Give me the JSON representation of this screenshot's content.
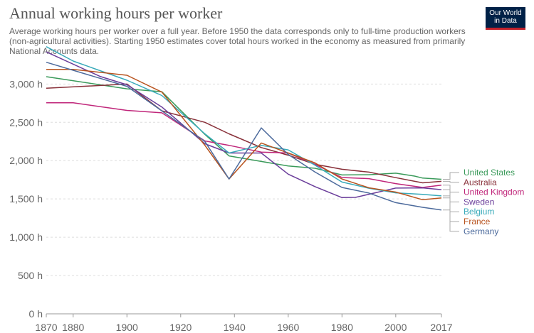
{
  "header": {
    "title": "Annual working hours per worker",
    "subtitle": "Average working hours per worker over a full year. Before 1950 the data corresponds only to full-time production workers (non-agricultural activities). Starting 1950 estimates cover total hours worked in the economy as measured from primarily National Accounts data."
  },
  "logo": {
    "line1": "Our World",
    "line2": "in Data"
  },
  "chart_data": {
    "type": "line",
    "title": "Annual working hours per worker",
    "xlim": [
      1870,
      2017
    ],
    "ylim": [
      0,
      3300
    ],
    "x_ticks": [
      1870,
      1880,
      1900,
      1920,
      1940,
      1960,
      1980,
      2000,
      2017
    ],
    "y_ticks": [
      {
        "value": 0,
        "label": "0 h"
      },
      {
        "value": 500,
        "label": "500 h"
      },
      {
        "value": 1000,
        "label": "1,000 h"
      },
      {
        "value": 1500,
        "label": "1,500 h"
      },
      {
        "value": 2000,
        "label": "2,000 h"
      },
      {
        "value": 2500,
        "label": "2,500 h"
      },
      {
        "value": 3000,
        "label": "3,000 h"
      }
    ],
    "grid": "horizontal dashed",
    "legend_position": "right",
    "series": [
      {
        "name": "United States",
        "color": "#3a9a5a",
        "points": [
          [
            1870,
            3096
          ],
          [
            1900,
            2938
          ],
          [
            1913,
            2900
          ],
          [
            1929,
            2342
          ],
          [
            1938,
            2062
          ],
          [
            1950,
            1989
          ],
          [
            1960,
            1930
          ],
          [
            1970,
            1900
          ],
          [
            1980,
            1813
          ],
          [
            1990,
            1816
          ],
          [
            2000,
            1836
          ],
          [
            2007,
            1798
          ],
          [
            2010,
            1772
          ],
          [
            2017,
            1757
          ]
        ]
      },
      {
        "name": "Australia",
        "color": "#883039",
        "points": [
          [
            1870,
            2945
          ],
          [
            1900,
            3000
          ],
          [
            1913,
            2650
          ],
          [
            1929,
            2500
          ],
          [
            1938,
            2350
          ],
          [
            1950,
            2171
          ],
          [
            1960,
            2071
          ],
          [
            1970,
            1952
          ],
          [
            1980,
            1887
          ],
          [
            1990,
            1850
          ],
          [
            2000,
            1778
          ],
          [
            2010,
            1710
          ],
          [
            2017,
            1730
          ]
        ]
      },
      {
        "name": "United Kingdom",
        "color": "#c0267a",
        "points": [
          [
            1870,
            2755
          ],
          [
            1880,
            2755
          ],
          [
            1900,
            2656
          ],
          [
            1913,
            2624
          ],
          [
            1929,
            2257
          ],
          [
            1938,
            2200
          ],
          [
            1950,
            2112
          ],
          [
            1960,
            2100
          ],
          [
            1970,
            1950
          ],
          [
            1980,
            1780
          ],
          [
            1990,
            1765
          ],
          [
            2000,
            1700
          ],
          [
            2010,
            1650
          ],
          [
            2017,
            1681
          ]
        ]
      },
      {
        "name": "Sweden",
        "color": "#6a3d9a",
        "points": [
          [
            1870,
            3420
          ],
          [
            1890,
            3100
          ],
          [
            1900,
            2990
          ],
          [
            1913,
            2700
          ],
          [
            1929,
            2220
          ],
          [
            1938,
            2100
          ],
          [
            1950,
            2100
          ],
          [
            1960,
            1823
          ],
          [
            1970,
            1660
          ],
          [
            1980,
            1517
          ],
          [
            1985,
            1520
          ],
          [
            1990,
            1561
          ],
          [
            2000,
            1642
          ],
          [
            2010,
            1644
          ],
          [
            2017,
            1621
          ]
        ]
      },
      {
        "name": "Belgium",
        "color": "#38aaba",
        "points": [
          [
            1870,
            3488
          ],
          [
            1880,
            3300
          ],
          [
            1900,
            3050
          ],
          [
            1913,
            2850
          ],
          [
            1929,
            2350
          ],
          [
            1938,
            2100
          ],
          [
            1950,
            2200
          ],
          [
            1960,
            2140
          ],
          [
            1970,
            1940
          ],
          [
            1980,
            1720
          ],
          [
            1990,
            1640
          ],
          [
            2000,
            1580
          ],
          [
            2010,
            1560
          ],
          [
            2017,
            1540
          ]
        ]
      },
      {
        "name": "France",
        "color": "#b8531e",
        "points": [
          [
            1870,
            3192
          ],
          [
            1880,
            3192
          ],
          [
            1900,
            3115
          ],
          [
            1913,
            2895
          ],
          [
            1929,
            2200
          ],
          [
            1938,
            1760
          ],
          [
            1950,
            2230
          ],
          [
            1960,
            2100
          ],
          [
            1970,
            1970
          ],
          [
            1980,
            1760
          ],
          [
            1990,
            1645
          ],
          [
            2000,
            1590
          ],
          [
            2010,
            1490
          ],
          [
            2017,
            1514
          ]
        ]
      },
      {
        "name": "Germany",
        "color": "#4c6a9c",
        "points": [
          [
            1870,
            3284
          ],
          [
            1900,
            2970
          ],
          [
            1913,
            2650
          ],
          [
            1929,
            2250
          ],
          [
            1938,
            1760
          ],
          [
            1950,
            2428
          ],
          [
            1960,
            2081
          ],
          [
            1970,
            1850
          ],
          [
            1980,
            1650
          ],
          [
            1990,
            1577
          ],
          [
            2000,
            1452
          ],
          [
            2010,
            1390
          ],
          [
            2017,
            1356
          ]
        ]
      }
    ]
  }
}
